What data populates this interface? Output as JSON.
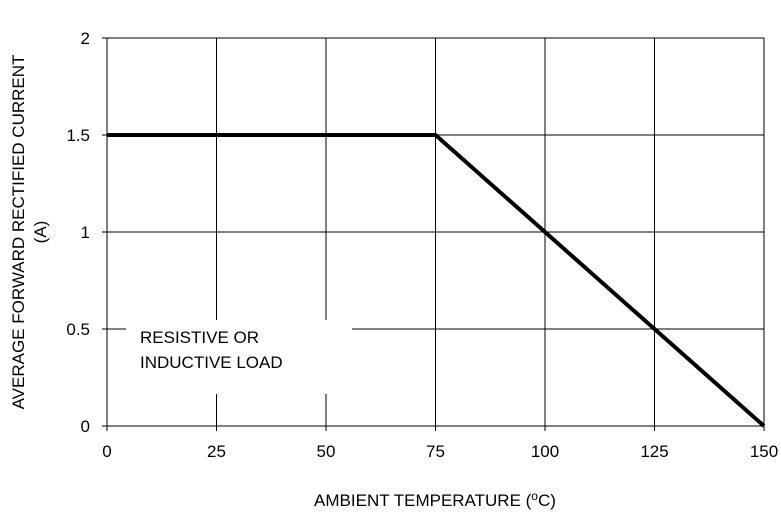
{
  "chart_data": {
    "type": "line",
    "xlabel": "AMBIENT TEMPERATURE (",
    "xlabel_sup": "o",
    "xlabel_tail": "C)",
    "ylabel_line1": "AVERAGE FORWARD RECTIFIED CURRENT",
    "ylabel_line2": "(A)",
    "xlim": [
      0,
      150
    ],
    "ylim": [
      0,
      2
    ],
    "x_ticks": [
      0,
      25,
      50,
      75,
      100,
      125,
      150
    ],
    "y_ticks": [
      0,
      0.5,
      1,
      1.5,
      2
    ],
    "y_tick_labels": [
      "0",
      "0.5",
      "1",
      "1.5",
      "2"
    ],
    "grid": true,
    "series": [
      {
        "x": [
          0,
          75,
          150
        ],
        "y": [
          1.5,
          1.5,
          0
        ]
      }
    ],
    "annotation_line1": "RESISTIVE OR",
    "annotation_line2": "INDUCTIVE LOAD"
  }
}
